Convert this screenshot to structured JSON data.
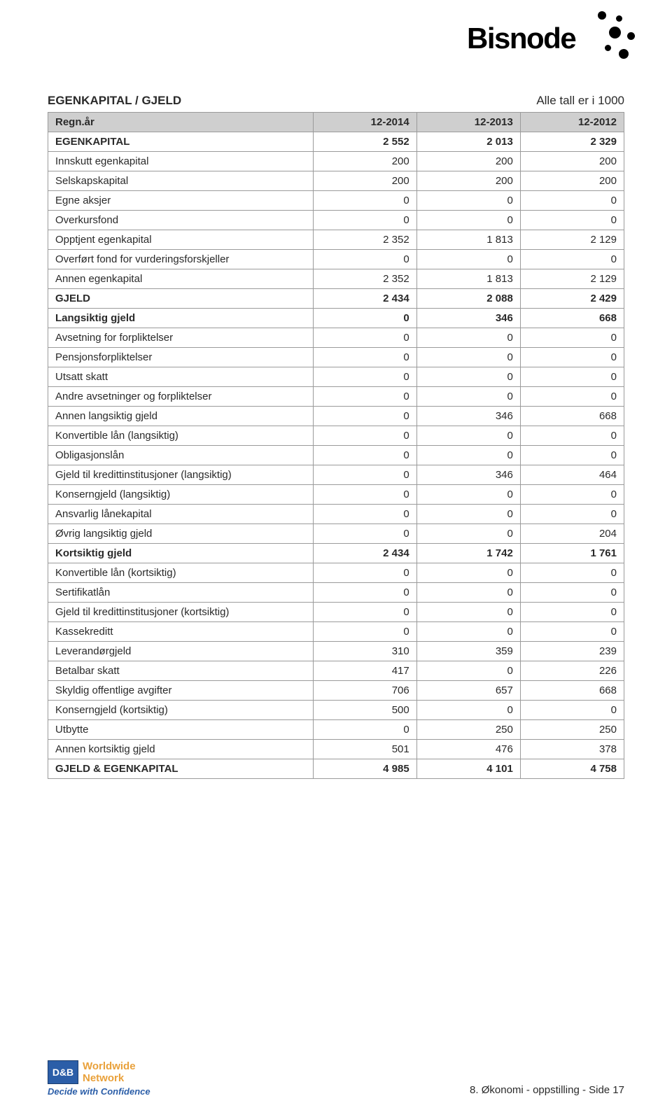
{
  "logo": {
    "text": "Bisnode"
  },
  "header": {
    "title": "EGENKAPITAL / GJELD",
    "note": "Alle tall er i 1000"
  },
  "table": {
    "head_label": "Regn.år",
    "columns": [
      "12-2014",
      "12-2013",
      "12-2012"
    ],
    "rows": [
      {
        "label": "EGENKAPITAL",
        "v": [
          "2 552",
          "2 013",
          "2 329"
        ],
        "bold": true
      },
      {
        "label": "Innskutt egenkapital",
        "v": [
          "200",
          "200",
          "200"
        ],
        "bold": false
      },
      {
        "label": "Selskapskapital",
        "v": [
          "200",
          "200",
          "200"
        ],
        "bold": false
      },
      {
        "label": "Egne aksjer",
        "v": [
          "0",
          "0",
          "0"
        ],
        "bold": false
      },
      {
        "label": "Overkursfond",
        "v": [
          "0",
          "0",
          "0"
        ],
        "bold": false
      },
      {
        "label": "Opptjent egenkapital",
        "v": [
          "2 352",
          "1 813",
          "2 129"
        ],
        "bold": false
      },
      {
        "label": "Overført fond for vurderingsforskjeller",
        "v": [
          "0",
          "0",
          "0"
        ],
        "bold": false
      },
      {
        "label": "Annen egenkapital",
        "v": [
          "2 352",
          "1 813",
          "2 129"
        ],
        "bold": false
      },
      {
        "label": "GJELD",
        "v": [
          "2 434",
          "2 088",
          "2 429"
        ],
        "bold": true
      },
      {
        "label": "Langsiktig gjeld",
        "v": [
          "0",
          "346",
          "668"
        ],
        "bold": true
      },
      {
        "label": "Avsetning for forpliktelser",
        "v": [
          "0",
          "0",
          "0"
        ],
        "bold": false
      },
      {
        "label": "Pensjonsforpliktelser",
        "v": [
          "0",
          "0",
          "0"
        ],
        "bold": false
      },
      {
        "label": "Utsatt skatt",
        "v": [
          "0",
          "0",
          "0"
        ],
        "bold": false
      },
      {
        "label": "Andre avsetninger og forpliktelser",
        "v": [
          "0",
          "0",
          "0"
        ],
        "bold": false
      },
      {
        "label": "Annen langsiktig gjeld",
        "v": [
          "0",
          "346",
          "668"
        ],
        "bold": false
      },
      {
        "label": "Konvertible lån (langsiktig)",
        "v": [
          "0",
          "0",
          "0"
        ],
        "bold": false
      },
      {
        "label": "Obligasjonslån",
        "v": [
          "0",
          "0",
          "0"
        ],
        "bold": false
      },
      {
        "label": "Gjeld til kredittinstitusjoner (langsiktig)",
        "v": [
          "0",
          "346",
          "464"
        ],
        "bold": false
      },
      {
        "label": "Konserngjeld (langsiktig)",
        "v": [
          "0",
          "0",
          "0"
        ],
        "bold": false
      },
      {
        "label": "Ansvarlig lånekapital",
        "v": [
          "0",
          "0",
          "0"
        ],
        "bold": false
      },
      {
        "label": "Øvrig langsiktig gjeld",
        "v": [
          "0",
          "0",
          "204"
        ],
        "bold": false
      },
      {
        "label": "Kortsiktig gjeld",
        "v": [
          "2 434",
          "1 742",
          "1 761"
        ],
        "bold": true
      },
      {
        "label": "Konvertible lån (kortsiktig)",
        "v": [
          "0",
          "0",
          "0"
        ],
        "bold": false
      },
      {
        "label": "Sertifikatlån",
        "v": [
          "0",
          "0",
          "0"
        ],
        "bold": false
      },
      {
        "label": "Gjeld til kredittinstitusjoner (kortsiktig)",
        "v": [
          "0",
          "0",
          "0"
        ],
        "bold": false
      },
      {
        "label": "Kassekreditt",
        "v": [
          "0",
          "0",
          "0"
        ],
        "bold": false
      },
      {
        "label": "Leverandørgjeld",
        "v": [
          "310",
          "359",
          "239"
        ],
        "bold": false
      },
      {
        "label": "Betalbar skatt",
        "v": [
          "417",
          "0",
          "226"
        ],
        "bold": false
      },
      {
        "label": "Skyldig offentlige avgifter",
        "v": [
          "706",
          "657",
          "668"
        ],
        "bold": false
      },
      {
        "label": "Konserngjeld (kortsiktig)",
        "v": [
          "500",
          "0",
          "0"
        ],
        "bold": false
      },
      {
        "label": "Utbytte",
        "v": [
          "0",
          "250",
          "250"
        ],
        "bold": false
      },
      {
        "label": "Annen kortsiktig gjeld",
        "v": [
          "501",
          "476",
          "378"
        ],
        "bold": false
      },
      {
        "label": "GJELD & EGENKAPITAL",
        "v": [
          "4 985",
          "4 101",
          "4 758"
        ],
        "bold": true
      }
    ]
  },
  "footer": {
    "db_text": "D&B",
    "wn_line1": "Worldwide",
    "wn_line2": "Network",
    "confidence": "Decide with Confidence",
    "page_text": "8. Økonomi - oppstilling - Side 17"
  },
  "style": {
    "header_bg": "#cfcfcf",
    "border_color": "#9b9b9b",
    "text_color": "#2a2a2a",
    "accent_orange": "#e9a13b",
    "accent_blue": "#2b5ea8",
    "font_size_body": 15,
    "font_size_title": 17
  }
}
